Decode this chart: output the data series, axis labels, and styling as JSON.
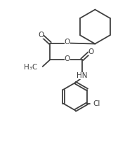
{
  "bg_color": "#ffffff",
  "line_color": "#404040",
  "line_width": 1.3,
  "font_size": 7.5,
  "figsize": [
    1.88,
    2.04
  ],
  "dpi": 100,
  "xlim": [
    0,
    10
  ],
  "ylim": [
    0,
    10.8
  ]
}
